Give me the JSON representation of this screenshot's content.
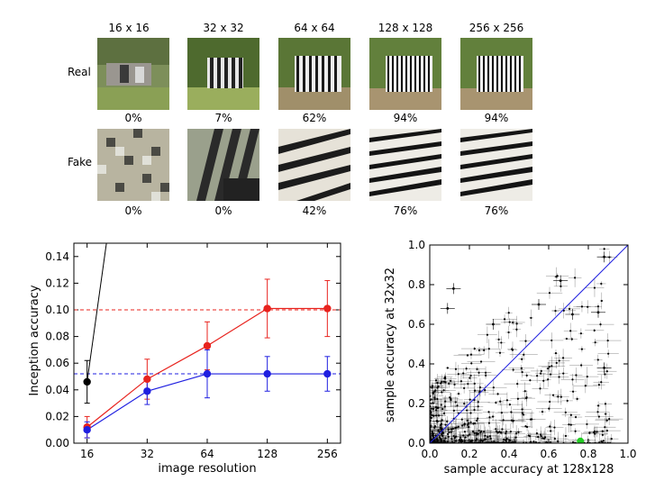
{
  "grid": {
    "columns": [
      "16 x 16",
      "32 x 32",
      "64 x 64",
      "128 x 128",
      "256 x 256"
    ],
    "rows": [
      {
        "label": "Real",
        "accuracies": [
          "0%",
          "7%",
          "62%",
          "94%",
          "94%"
        ]
      },
      {
        "label": "Fake",
        "accuracies": [
          "0%",
          "0%",
          "42%",
          "76%",
          "76%"
        ]
      }
    ]
  },
  "chart_data": [
    {
      "type": "line",
      "xlabel": "image resolution",
      "ylabel": "Inception accuracy",
      "x": [
        16,
        32,
        64,
        128,
        256
      ],
      "x_scale": "log2",
      "ylim": [
        0,
        0.15
      ],
      "yticks": [
        0.0,
        0.02,
        0.04,
        0.06,
        0.08,
        0.1,
        0.12,
        0.14
      ],
      "series": [
        {
          "color": "#e8231e",
          "values": [
            0.012,
            0.048,
            0.073,
            0.101,
            0.101
          ],
          "err": [
            0.008,
            0.015,
            0.018,
            0.022,
            0.021
          ],
          "dashed_ref": 0.1
        },
        {
          "color": "#1f1fe0",
          "values": [
            0.01,
            0.039,
            0.052,
            0.052,
            0.052
          ],
          "err": [
            0.006,
            0.01,
            0.018,
            0.013,
            0.013
          ],
          "dashed_ref": 0.052
        },
        {
          "color": "#000000",
          "points": [
            [
              16,
              0.046
            ],
            [
              20,
              0.15
            ]
          ],
          "err": [
            0.016
          ]
        }
      ]
    },
    {
      "type": "scatter",
      "xlabel": "sample accuracy at 128x128",
      "ylabel": "sample accuracy at 32x32",
      "xlim": [
        0,
        1.0
      ],
      "ylim": [
        0,
        1.0
      ],
      "ticks": [
        0.0,
        0.2,
        0.4,
        0.6,
        0.8,
        1.0
      ],
      "diagonal": {
        "color": "#1f1fe0"
      },
      "highlight": {
        "x": 0.76,
        "y": 0.01,
        "color": "#22cc22"
      }
    }
  ]
}
